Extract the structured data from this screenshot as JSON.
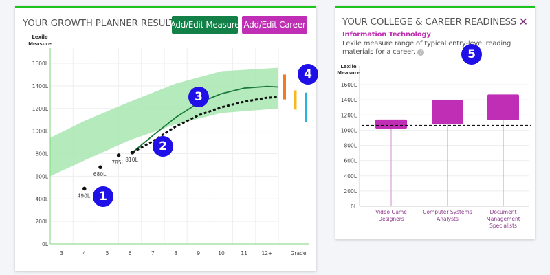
{
  "growth": {
    "title": "YOUR GROWTH PLANNER RESULTS",
    "add_measure_label": "Add/Edit Measure",
    "add_career_label": "Add/Edit Career",
    "colors": {
      "measure_button": "#138048",
      "career_button": "#c02eb5",
      "band": "#a8e6b0",
      "line": "#1a7a3a"
    },
    "chart_data": {
      "type": "line",
      "ylabel": "Lexile Measure",
      "xlabel": "Grade",
      "yticks": [
        "0L",
        "200L",
        "400L",
        "600L",
        "800L",
        "1000L",
        "1200L",
        "1400L",
        "1600L"
      ],
      "ylim": [
        0,
        1600
      ],
      "xticks": [
        "3",
        "4",
        "5",
        "6",
        "7",
        "8",
        "9",
        "10",
        "11",
        "12+"
      ],
      "measures": [
        {
          "grade": 4.0,
          "value": 490,
          "label": "490L"
        },
        {
          "grade": 4.7,
          "value": 680,
          "label": "680L"
        },
        {
          "grade": 5.5,
          "value": 785,
          "label": "785L"
        },
        {
          "grade": 6.1,
          "value": 810,
          "label": "810L"
        }
      ],
      "band": {
        "grades": [
          2.5,
          4,
          6,
          8,
          10,
          12.5
        ],
        "low": [
          600,
          740,
          920,
          1060,
          1160,
          1200
        ],
        "high": [
          940,
          1090,
          1260,
          1420,
          1530,
          1560
        ]
      },
      "target_line": {
        "grades": [
          6.1,
          7,
          8,
          9,
          10,
          11,
          12,
          12.5
        ],
        "values": [
          810,
          960,
          1120,
          1250,
          1330,
          1380,
          1395,
          1390
        ]
      },
      "projection": {
        "grades": [
          6.1,
          7,
          8,
          9,
          10,
          11,
          12,
          12.5
        ],
        "values": [
          810,
          910,
          1040,
          1140,
          1210,
          1260,
          1295,
          1300
        ]
      },
      "career_ranges": [
        {
          "color": "#f47a20",
          "low": 1280,
          "high": 1500
        },
        {
          "color": "#f6b81c",
          "low": 1190,
          "high": 1360
        },
        {
          "color": "#2bb3d8",
          "low": 1080,
          "high": 1340
        }
      ]
    }
  },
  "readiness": {
    "title": "YOUR COLLEGE & CAREER READINESS",
    "close_label": "✕",
    "category": "Information Technology",
    "description": "Lexile measure range of typical entry-level reading materials for a career.",
    "help_icon": "?",
    "chart_data": {
      "type": "bar",
      "ylabel": "Lexile Measure",
      "yticks": [
        "0L",
        "200L",
        "400L",
        "600L",
        "800L",
        "1000L",
        "1200L",
        "1400L",
        "1600L"
      ],
      "ylim": [
        0,
        1600
      ],
      "categories": [
        "Video Game Designers",
        "Computer Systems Analysts",
        "Document Management Specialists"
      ],
      "ranges": [
        [
          1020,
          1140
        ],
        [
          1080,
          1400
        ],
        [
          1130,
          1470
        ]
      ],
      "reference_line": 1060,
      "bar_color": "#c02eb5"
    }
  },
  "badges": [
    "1",
    "2",
    "3",
    "4",
    "5"
  ]
}
